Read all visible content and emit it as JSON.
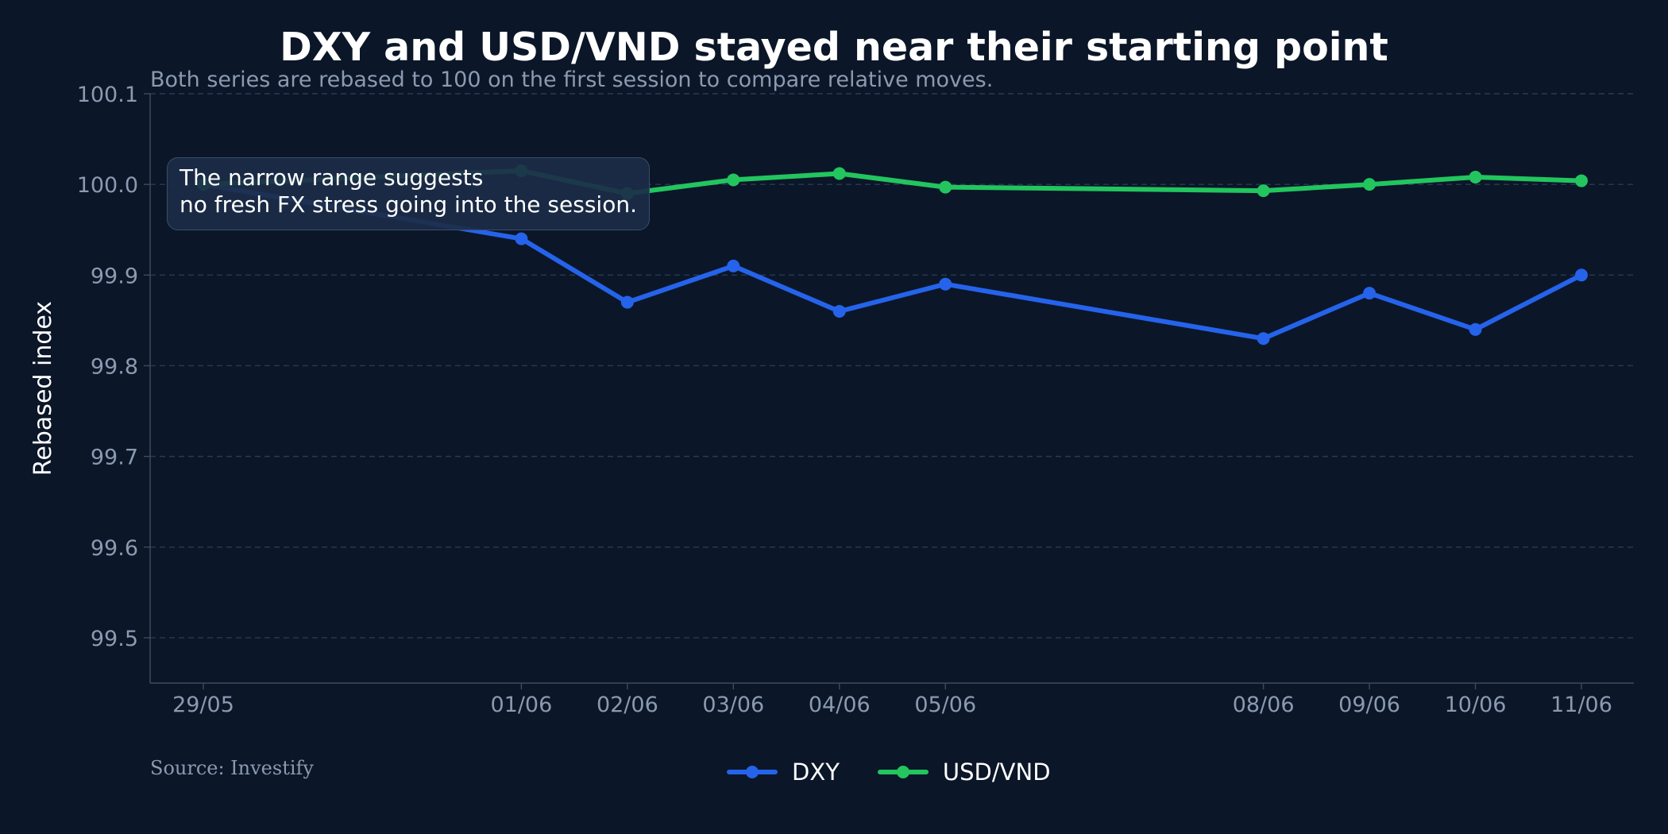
{
  "chart_data": {
    "type": "line",
    "title": "DXY and USD/VND stayed near their starting point",
    "subtitle": "Both series are rebased to 100 on the first session to compare relative moves.",
    "xlabel": "",
    "ylabel": "Rebased index",
    "x": [
      "29/05",
      "01/06",
      "02/06",
      "03/06",
      "04/06",
      "05/06",
      "08/06",
      "09/06",
      "10/06",
      "11/06"
    ],
    "x_days": [
      29,
      32,
      33,
      34,
      35,
      36,
      39,
      40,
      41,
      42
    ],
    "ylim": [
      99.45,
      100.1
    ],
    "yticks": [
      99.5,
      99.6,
      99.7,
      99.8,
      99.9,
      100.0,
      100.1
    ],
    "ytick_labels": [
      "99.5",
      "99.6",
      "99.7",
      "99.8",
      "99.9",
      "100.0",
      "100.1"
    ],
    "grid": true,
    "legend_position": "bottom-center",
    "series": [
      {
        "name": "DXY",
        "color": "#2563eb",
        "values": [
          100.0,
          99.94,
          99.87,
          99.91,
          99.86,
          99.89,
          99.83,
          99.88,
          99.84,
          99.9
        ]
      },
      {
        "name": "USD/VND",
        "color": "#22c55e",
        "values": [
          100.0,
          100.015,
          99.99,
          100.005,
          100.012,
          99.997,
          99.993,
          100.0,
          100.008,
          100.004
        ]
      }
    ],
    "annotation": "The narrow range suggests\nno fresh FX stress going into the session.",
    "source": "Source: Investify"
  }
}
